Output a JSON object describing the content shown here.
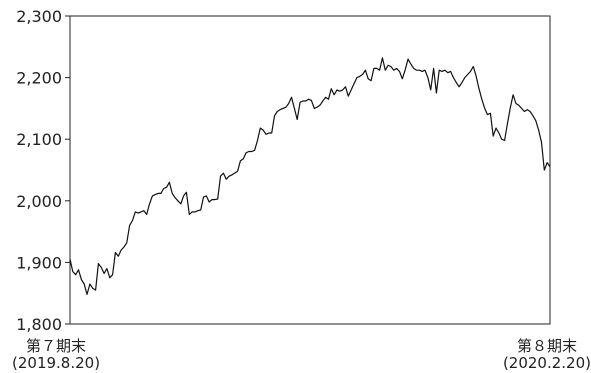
{
  "chart_data": {
    "type": "line",
    "title": "",
    "xlabel": "",
    "ylabel": "",
    "ylim": [
      1800,
      2300
    ],
    "yticks": [
      1800,
      1900,
      2000,
      2100,
      2200,
      2300
    ],
    "ytick_labels": [
      "1,800",
      "1,900",
      "2,000",
      "2,100",
      "2,200",
      "2,300"
    ],
    "grid": false,
    "x_start_label": {
      "line1": "第７期末",
      "line2": "(2019.8.20)"
    },
    "x_end_label": {
      "line1": "第８期末",
      "line2": "(2020.2.20)"
    },
    "series": [
      {
        "values": [
          1905,
          1885,
          1880,
          1888,
          1872,
          1865,
          1848,
          1865,
          1858,
          1855,
          1898,
          1892,
          1882,
          1890,
          1875,
          1880,
          1916,
          1910,
          1920,
          1925,
          1932,
          1960,
          1968,
          1982,
          1980,
          1982,
          1984,
          1978,
          1995,
          2008,
          2010,
          2012,
          2012,
          2020,
          2022,
          2030,
          2012,
          2005,
          2000,
          1995,
          2008,
          2014,
          1978,
          1982,
          1982,
          1984,
          1985,
          2006,
          2008,
          1998,
          2002,
          2002,
          2003,
          2040,
          2045,
          2035,
          2040,
          2042,
          2045,
          2048,
          2065,
          2068,
          2078,
          2080,
          2080,
          2082,
          2098,
          2118,
          2115,
          2108,
          2110,
          2110,
          2138,
          2145,
          2148,
          2150,
          2152,
          2158,
          2168,
          2150,
          2132,
          2160,
          2162,
          2162,
          2165,
          2163,
          2150,
          2152,
          2155,
          2162,
          2168,
          2165,
          2182,
          2172,
          2180,
          2178,
          2180,
          2185,
          2170,
          2180,
          2190,
          2200,
          2202,
          2205,
          2212,
          2198,
          2195,
          2215,
          2215,
          2212,
          2232,
          2212,
          2220,
          2218,
          2212,
          2215,
          2210,
          2198,
          2212,
          2230,
          2222,
          2215,
          2212,
          2212,
          2210,
          2212,
          2200,
          2180,
          2215,
          2175,
          2212,
          2210,
          2212,
          2208,
          2210,
          2200,
          2192,
          2185,
          2192,
          2200,
          2205,
          2210,
          2218,
          2202,
          2182,
          2165,
          2150,
          2140,
          2142,
          2105,
          2118,
          2110,
          2100,
          2098,
          2125,
          2150,
          2172,
          2158,
          2155,
          2150,
          2145,
          2148,
          2145,
          2138,
          2130,
          2115,
          2095,
          2050,
          2062,
          2055
        ]
      }
    ]
  }
}
